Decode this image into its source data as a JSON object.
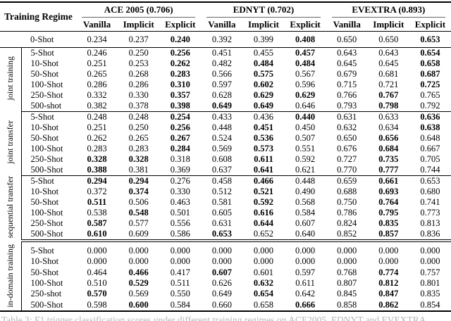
{
  "table": {
    "corner_header": "Training Regime",
    "col_groups": [
      {
        "label": "ACE 2005 (0.706)"
      },
      {
        "label": "EDNYT (0.702)"
      },
      {
        "label": "EVEXTRA (0.893)"
      }
    ],
    "sub_headers": [
      "Vanilla",
      "Implicit",
      "Explicit"
    ],
    "sections": [
      {
        "slug": "zero-shot",
        "label": "",
        "rule_after": "single",
        "rows": [
          {
            "label": "0-Shot",
            "values": [
              "0.234",
              "0.237",
              "0.240",
              "0.392",
              "0.399",
              "0.408",
              "0.650",
              "0.650",
              "0.653"
            ],
            "bold": [
              2,
              5,
              8
            ]
          }
        ]
      },
      {
        "slug": "joint-training",
        "label": "joint training",
        "rule_after": "single",
        "rows": [
          {
            "label": "5-Shot",
            "values": [
              "0.246",
              "0.250",
              "0.256",
              "0.451",
              "0.455",
              "0.457",
              "0.643",
              "0.643",
              "0.654"
            ],
            "bold": [
              2,
              5,
              8
            ]
          },
          {
            "label": "10-Shot",
            "values": [
              "0.251",
              "0.253",
              "0.262",
              "0.482",
              "0.484",
              "0.484",
              "0.645",
              "0.645",
              "0.658"
            ],
            "bold": [
              2,
              4,
              5,
              8
            ]
          },
          {
            "label": "50-Shot",
            "values": [
              "0.265",
              "0.268",
              "0.283",
              "0.566",
              "0.575",
              "0.567",
              "0.679",
              "0.681",
              "0.687"
            ],
            "bold": [
              2,
              4,
              8
            ]
          },
          {
            "label": "100-Shot",
            "values": [
              "0.286",
              "0.286",
              "0.310",
              "0.597",
              "0.602",
              "0.596",
              "0.715",
              "0.721",
              "0.725"
            ],
            "bold": [
              2,
              4,
              8
            ]
          },
          {
            "label": "250-Shot",
            "values": [
              "0.332",
              "0.330",
              "0.357",
              "0.628",
              "0.629",
              "0.629",
              "0.766",
              "0.767",
              "0.765"
            ],
            "bold": [
              2,
              4,
              5,
              7
            ]
          },
          {
            "label": "500-shot",
            "values": [
              "0.382",
              "0.378",
              "0.398",
              "0.649",
              "0.649",
              "0.646",
              "0.793",
              "0.798",
              "0.792"
            ],
            "bold": [
              2,
              3,
              4,
              7
            ]
          }
        ]
      },
      {
        "slug": "joint-transfer",
        "label": "joint transfer",
        "rule_after": "single",
        "rows": [
          {
            "label": "5-Shot",
            "values": [
              "0.248",
              "0.248",
              "0.254",
              "0.433",
              "0.436",
              "0.440",
              "0.631",
              "0.633",
              "0.636"
            ],
            "bold": [
              2,
              5,
              8
            ]
          },
          {
            "label": "10-Shot",
            "values": [
              "0.251",
              "0.250",
              "0.256",
              "0.448",
              "0.451",
              "0.450",
              "0.632",
              "0.634",
              "0.638"
            ],
            "bold": [
              2,
              4,
              8
            ]
          },
          {
            "label": "50-Shot",
            "values": [
              "0.262",
              "0.265",
              "0.267",
              "0.524",
              "0.536",
              "0.507",
              "0.650",
              "0.656",
              "0.648"
            ],
            "bold": [
              2,
              4,
              7
            ]
          },
          {
            "label": "100-Shot",
            "values": [
              "0.283",
              "0.283",
              "0.284",
              "0.569",
              "0.573",
              "0.551",
              "0.676",
              "0.684",
              "0.667"
            ],
            "bold": [
              2,
              4,
              7
            ]
          },
          {
            "label": "250-Shot",
            "values": [
              "0.328",
              "0.328",
              "0.318",
              "0.608",
              "0.611",
              "0.592",
              "0.727",
              "0.735",
              "0.705"
            ],
            "bold": [
              0,
              1,
              4,
              7
            ]
          },
          {
            "label": "500-Shot",
            "values": [
              "0.388",
              "0.381",
              "0.369",
              "0.637",
              "0.641",
              "0.621",
              "0.770",
              "0.777",
              "0.744"
            ],
            "bold": [
              0,
              4,
              7
            ]
          }
        ]
      },
      {
        "slug": "sequential-transfer",
        "label": "sequential transfer",
        "rule_after": "double",
        "rows": [
          {
            "label": "5-Shot",
            "values": [
              "0.294",
              "0.294",
              "0.276",
              "0.458",
              "0.466",
              "0.448",
              "0.659",
              "0.661",
              "0.653"
            ],
            "bold": [
              0,
              1,
              4,
              7
            ]
          },
          {
            "label": "10-Shot",
            "values": [
              "0.372",
              "0.374",
              "0.330",
              "0.512",
              "0.521",
              "0.490",
              "0.688",
              "0.693",
              "0.680"
            ],
            "bold": [
              1,
              4,
              7
            ]
          },
          {
            "label": "50-Shot",
            "values": [
              "0.511",
              "0.506",
              "0.463",
              "0.581",
              "0.592",
              "0.568",
              "0.750",
              "0.764",
              "0.741"
            ],
            "bold": [
              0,
              4,
              7
            ]
          },
          {
            "label": "100-Shot",
            "values": [
              "0.538",
              "0.548",
              "0.501",
              "0.605",
              "0.616",
              "0.584",
              "0.786",
              "0.795",
              "0.773"
            ],
            "bold": [
              1,
              4,
              7
            ]
          },
          {
            "label": "250-Shot",
            "values": [
              "0.587",
              "0.577",
              "0.556",
              "0.631",
              "0.644",
              "0.607",
              "0.824",
              "0.835",
              "0.813"
            ],
            "bold": [
              0,
              4,
              7
            ]
          },
          {
            "label": "500-Shot",
            "values": [
              "0.610",
              "0.609",
              "0.586",
              "0.653",
              "0.652",
              "0.640",
              "0.852",
              "0.857",
              "0.836"
            ],
            "bold": [
              0,
              3,
              7
            ]
          }
        ]
      },
      {
        "slug": "in-domain-training",
        "label": "in-domain training",
        "rule_after": "none",
        "rows": [
          {
            "label": "5-Shot",
            "values": [
              "0.000",
              "0.000",
              "0.000",
              "0.000",
              "0.000",
              "0.000",
              "0.000",
              "0.000",
              "0.000"
            ],
            "bold": []
          },
          {
            "label": "10-Shot",
            "values": [
              "0.000",
              "0.000",
              "0.000",
              "0.000",
              "0.000",
              "0.000",
              "0.000",
              "0.000",
              "0.000"
            ],
            "bold": []
          },
          {
            "label": "50-Shot",
            "values": [
              "0.464",
              "0.466",
              "0.417",
              "0.607",
              "0.601",
              "0.597",
              "0.768",
              "0.774",
              "0.757"
            ],
            "bold": [
              1,
              3,
              7
            ]
          },
          {
            "label": "100-Shot",
            "values": [
              "0.510",
              "0.529",
              "0.511",
              "0.626",
              "0.632",
              "0.611",
              "0.807",
              "0.812",
              "0.801"
            ],
            "bold": [
              1,
              4,
              7
            ]
          },
          {
            "label": "250-shot",
            "values": [
              "0.570",
              "0.569",
              "0.550",
              "0.649",
              "0.654",
              "0.642",
              "0.845",
              "0.847",
              "0.835"
            ],
            "bold": [
              0,
              4,
              7
            ]
          },
          {
            "label": "500-Shot",
            "values": [
              "0.598",
              "0.600",
              "0.584",
              "0.660",
              "0.658",
              "0.666",
              "0.858",
              "0.862",
              "0.854"
            ],
            "bold": [
              1,
              5,
              7
            ]
          }
        ]
      }
    ],
    "caption": {
      "clipped": true,
      "text_fragment": "Table 3: F1 trigger classification scores under different training regimes on ACE2005, EDNYT and EVEXTRA."
    }
  }
}
